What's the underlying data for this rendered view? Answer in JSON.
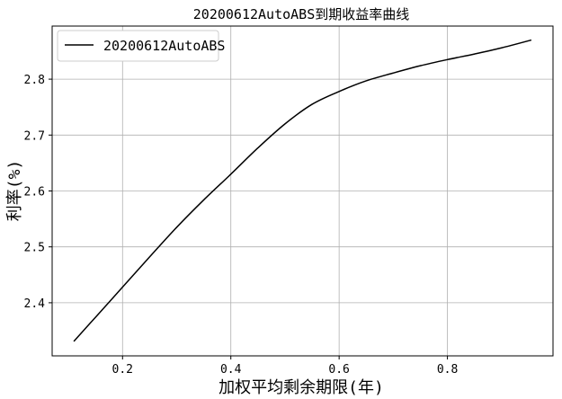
{
  "chart_data": {
    "type": "line",
    "title": "20200612AutoABS到期收益率曲线",
    "xlabel": "加权平均剩余期限(年)",
    "ylabel": "利率(%)",
    "xlim": [
      0.07,
      0.995
    ],
    "ylim": [
      2.305,
      2.895
    ],
    "xticks": [
      0.2,
      0.4,
      0.6,
      0.8
    ],
    "xtick_labels": [
      "0.2",
      "0.4",
      "0.6",
      "0.8"
    ],
    "yticks": [
      2.4,
      2.5,
      2.6,
      2.7,
      2.8
    ],
    "ytick_labels": [
      "2.4",
      "2.5",
      "2.6",
      "2.7",
      "2.8"
    ],
    "grid": true,
    "legend": {
      "position": "top-left"
    },
    "series": [
      {
        "name": "20200612AutoABS",
        "color": "#000000",
        "x": [
          0.11,
          0.15,
          0.2,
          0.25,
          0.3,
          0.35,
          0.4,
          0.45,
          0.5,
          0.55,
          0.6,
          0.65,
          0.7,
          0.75,
          0.8,
          0.85,
          0.9,
          0.955
        ],
        "y": [
          2.331,
          2.374,
          2.428,
          2.482,
          2.535,
          2.584,
          2.63,
          2.677,
          2.72,
          2.755,
          2.778,
          2.797,
          2.811,
          2.824,
          2.835,
          2.845,
          2.856,
          2.87
        ]
      }
    ]
  }
}
